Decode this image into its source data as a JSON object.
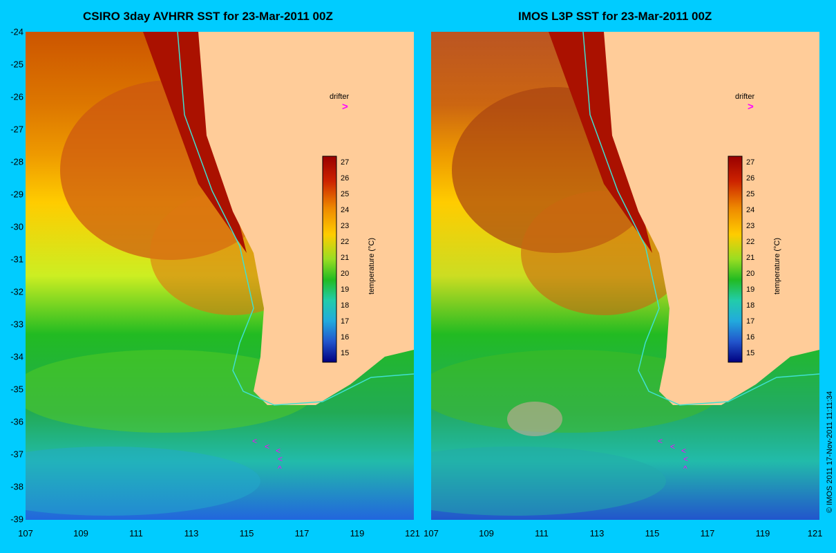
{
  "panels": [
    {
      "title": "CSIRO 3day AVHRR SST for 23-Mar-2011 00Z"
    },
    {
      "title": "IMOS L3P SST for 23-Mar-2011 00Z"
    }
  ],
  "x_ticks": [
    "107",
    "109",
    "111",
    "113",
    "115",
    "117",
    "119",
    "121"
  ],
  "y_ticks": [
    "-24",
    "-25",
    "-26",
    "-27",
    "-28",
    "-29",
    "-30",
    "-31",
    "-32",
    "-33",
    "-34",
    "-35",
    "-36",
    "-37",
    "-38",
    "-39"
  ],
  "drifter_label": "drifter",
  "drifter_symbol": ">",
  "colorbar": {
    "label": "temperature (°C)",
    "ticks": [
      "27",
      "26",
      "25",
      "24",
      "23",
      "22",
      "21",
      "20",
      "19",
      "18",
      "17",
      "16",
      "15"
    ]
  },
  "copyright": "© IMOS 2011   17-Nov-2011 11:11:34",
  "colors": {
    "background": "#00ccff",
    "land": "#ffcc99",
    "coast_line": "#40e0d0",
    "drifter": "#ff00ff"
  }
}
